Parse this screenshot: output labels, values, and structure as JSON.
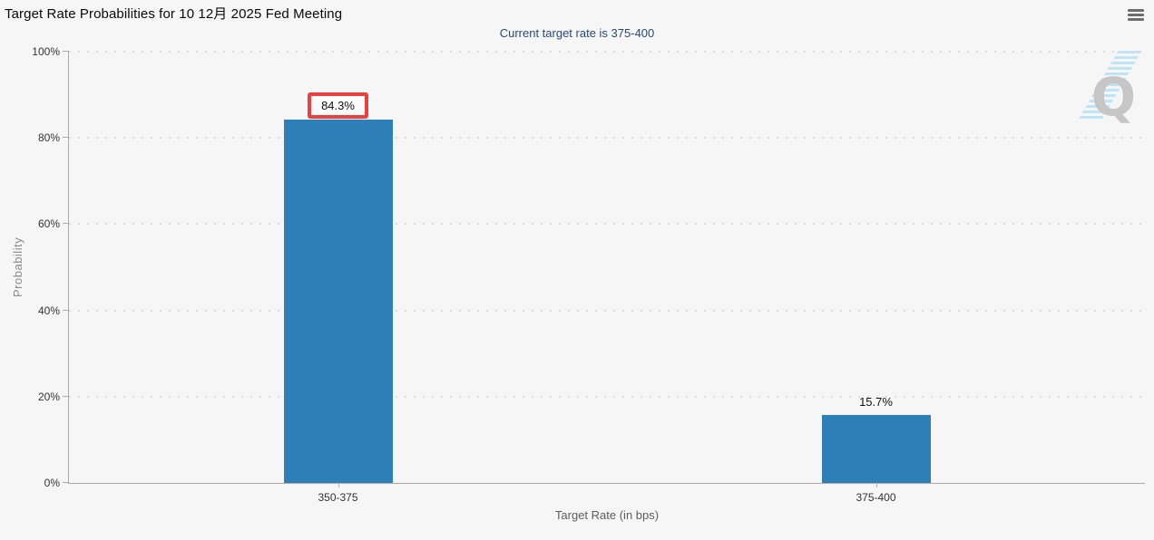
{
  "chart_data": {
    "type": "bar",
    "title": "Target Rate Probabilities for 10 12月 2025 Fed Meeting",
    "subtitle": "Current target rate is 375-400",
    "xlabel": "Target Rate (in bps)",
    "ylabel": "Probability",
    "categories": [
      "350-375",
      "375-400"
    ],
    "values": [
      84.3,
      15.7
    ],
    "value_labels": [
      "84.3%",
      "15.7%"
    ],
    "ylim": [
      0,
      100
    ],
    "yticks": [
      "0%",
      "20%",
      "40%",
      "60%",
      "80%",
      "100%"
    ],
    "grid": "dotted-horizontal",
    "legend": "none",
    "bar_color": "#2e7fb8"
  },
  "annotation": {
    "highlight_index": 0,
    "highlight_color": "#e8413f"
  },
  "header": {
    "menu_icon": "hamburger-icon"
  },
  "watermark": {
    "letter": "Q",
    "stripe_color": "#b5e1f5",
    "letter_color": "#c6c6c6"
  },
  "colors": {
    "background": "#f6f6f6",
    "axis": "#a9a9a9",
    "subtitle": "#274b73"
  }
}
